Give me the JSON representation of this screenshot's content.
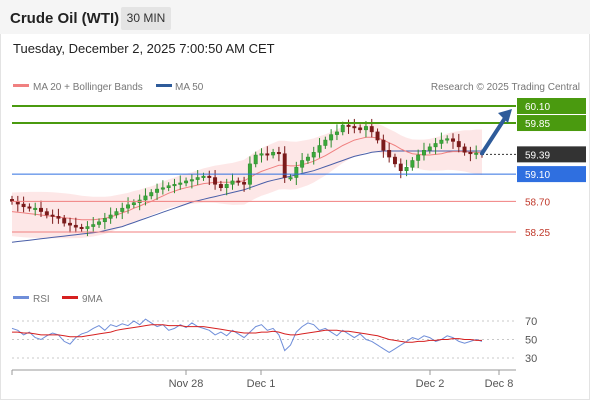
{
  "header": {
    "title": "Crude Oil (WTI)",
    "timeframe": "30 MIN"
  },
  "timestamp": "Tuesday, December 2, 2025 7:00:50 AM CET",
  "legend": {
    "ma20": "MA 20 + Bollinger Bands",
    "ma50": "MA 50",
    "credit": "Research © 2025 Trading Central"
  },
  "rsi_legend": {
    "rsi": "RSI",
    "ma9": "9MA"
  },
  "colors": {
    "resistance": "#4a9a0f",
    "support": "#f07f7f",
    "pivot": "#2f6fe0",
    "current": "#333333",
    "ma20": "#f08080",
    "ma50": "#4a5fa8",
    "rsi": "#6f8ed9",
    "rsi_ma": "#d62020",
    "arrow": "#2e5b9a"
  },
  "chart_data": [
    {
      "type": "line",
      "title": "Crude Oil (WTI) 30 MIN",
      "price_range": [
        57.5,
        60.3
      ],
      "x_labels": [
        "Nov 28",
        "Dec 1",
        "Dec 2",
        "Dec 8"
      ],
      "current_price": "59.39",
      "levels": [
        {
          "value": "60.10",
          "kind": "resistance"
        },
        {
          "value": "59.85",
          "kind": "resistance"
        },
        {
          "value": "59.10",
          "kind": "pivot"
        },
        {
          "value": "58.70",
          "kind": "support"
        },
        {
          "value": "58.25",
          "kind": "support"
        }
      ],
      "close_series": [
        58.7,
        58.66,
        58.62,
        58.6,
        58.6,
        58.55,
        58.5,
        58.48,
        58.45,
        58.38,
        58.35,
        58.32,
        58.3,
        58.33,
        58.36,
        58.4,
        58.45,
        58.5,
        58.55,
        58.6,
        58.65,
        58.68,
        58.72,
        58.78,
        58.83,
        58.88,
        58.9,
        58.93,
        58.95,
        58.97,
        59.0,
        59.02,
        59.05,
        59.07,
        59.05,
        58.95,
        58.9,
        58.95,
        59.0,
        58.98,
        58.95,
        59.25,
        59.38,
        59.4,
        59.38,
        59.42,
        59.4,
        59.05,
        59.05,
        59.2,
        59.3,
        59.35,
        59.42,
        59.52,
        59.6,
        59.68,
        59.72,
        59.82,
        59.8,
        59.78,
        59.75,
        59.8,
        59.72,
        59.6,
        59.45,
        59.35,
        59.25,
        59.15,
        59.2,
        59.3,
        59.38,
        59.45,
        59.5,
        59.55,
        59.6,
        59.62,
        59.58,
        59.5,
        59.42,
        59.4,
        59.41,
        59.39
      ],
      "ma20_series": [
        58.55,
        58.54,
        58.53,
        58.52,
        58.51,
        58.5,
        58.49,
        58.48,
        58.47,
        58.46,
        58.45,
        58.44,
        58.43,
        58.43,
        58.43,
        58.44,
        58.45,
        58.47,
        58.5,
        58.53,
        58.56,
        58.6,
        58.63,
        58.67,
        58.7,
        58.74,
        58.78,
        58.82,
        58.85,
        58.88,
        58.9,
        58.92,
        58.94,
        58.96,
        58.97,
        58.98,
        58.98,
        58.98,
        58.98,
        58.99,
        59.0,
        59.05,
        59.1,
        59.14,
        59.17,
        59.2,
        59.23,
        59.23,
        59.22,
        59.22,
        59.24,
        59.26,
        59.29,
        59.33,
        59.37,
        59.42,
        59.47,
        59.52,
        59.56,
        59.6,
        59.62,
        59.64,
        59.64,
        59.63,
        59.6,
        59.56,
        59.52,
        59.47,
        59.43,
        59.4,
        59.39,
        59.38,
        59.38,
        59.39,
        59.4,
        59.42,
        59.43,
        59.43,
        59.43,
        59.42,
        59.42,
        59.41
      ],
      "ma50_series": [
        58.1,
        58.11,
        58.12,
        58.13,
        58.14,
        58.15,
        58.16,
        58.17,
        58.18,
        58.19,
        58.2,
        58.21,
        58.22,
        58.23,
        58.24,
        58.25,
        58.27,
        58.29,
        58.31,
        58.33,
        58.36,
        58.39,
        58.42,
        58.45,
        58.48,
        58.51,
        58.54,
        58.57,
        58.6,
        58.63,
        58.66,
        58.69,
        58.71,
        58.73,
        58.75,
        58.77,
        58.79,
        58.81,
        58.83,
        58.85,
        58.87,
        58.9,
        58.93,
        58.96,
        58.99,
        59.01,
        59.03,
        59.05,
        59.07,
        59.09,
        59.11,
        59.13,
        59.15,
        59.18,
        59.21,
        59.24,
        59.27,
        59.3,
        59.33,
        59.36,
        59.38,
        59.4,
        59.42,
        59.43,
        59.44,
        59.44,
        59.44,
        59.44,
        59.44,
        59.44,
        59.44,
        59.44,
        59.44,
        59.44,
        59.44,
        59.44,
        59.44,
        59.44,
        59.44,
        59.44,
        59.44,
        59.44
      ]
    },
    {
      "type": "line",
      "title": "RSI",
      "y_ticks": [
        30,
        50,
        70
      ],
      "ylim": [
        20,
        80
      ],
      "rsi_series": [
        62,
        60,
        55,
        58,
        52,
        50,
        54,
        57,
        55,
        48,
        45,
        52,
        56,
        58,
        62,
        65,
        60,
        66,
        64,
        67,
        65,
        70,
        66,
        72,
        68,
        64,
        66,
        60,
        62,
        66,
        63,
        68,
        64,
        62,
        60,
        55,
        58,
        54,
        60,
        56,
        52,
        58,
        64,
        66,
        60,
        62,
        55,
        38,
        44,
        58,
        64,
        68,
        66,
        60,
        62,
        58,
        54,
        60,
        56,
        52,
        56,
        50,
        48,
        44,
        40,
        36,
        40,
        44,
        48,
        52,
        50,
        54,
        52,
        48,
        50,
        54,
        52,
        48,
        46,
        48,
        50,
        48
      ],
      "rsi_ma_series": [
        58,
        58,
        57,
        57,
        56,
        55,
        55,
        55,
        55,
        54,
        53,
        53,
        53,
        54,
        55,
        56,
        57,
        58,
        60,
        61,
        62,
        63,
        64,
        65,
        66,
        66,
        66,
        65,
        65,
        65,
        64,
        64,
        64,
        64,
        63,
        62,
        61,
        60,
        59,
        58,
        57,
        57,
        57,
        58,
        58,
        59,
        58,
        56,
        55,
        55,
        56,
        57,
        58,
        59,
        60,
        60,
        60,
        59,
        59,
        58,
        57,
        56,
        55,
        54,
        52,
        50,
        49,
        48,
        47,
        47,
        48,
        48,
        49,
        49,
        50,
        50,
        51,
        51,
        50,
        50,
        49,
        49
      ]
    }
  ]
}
